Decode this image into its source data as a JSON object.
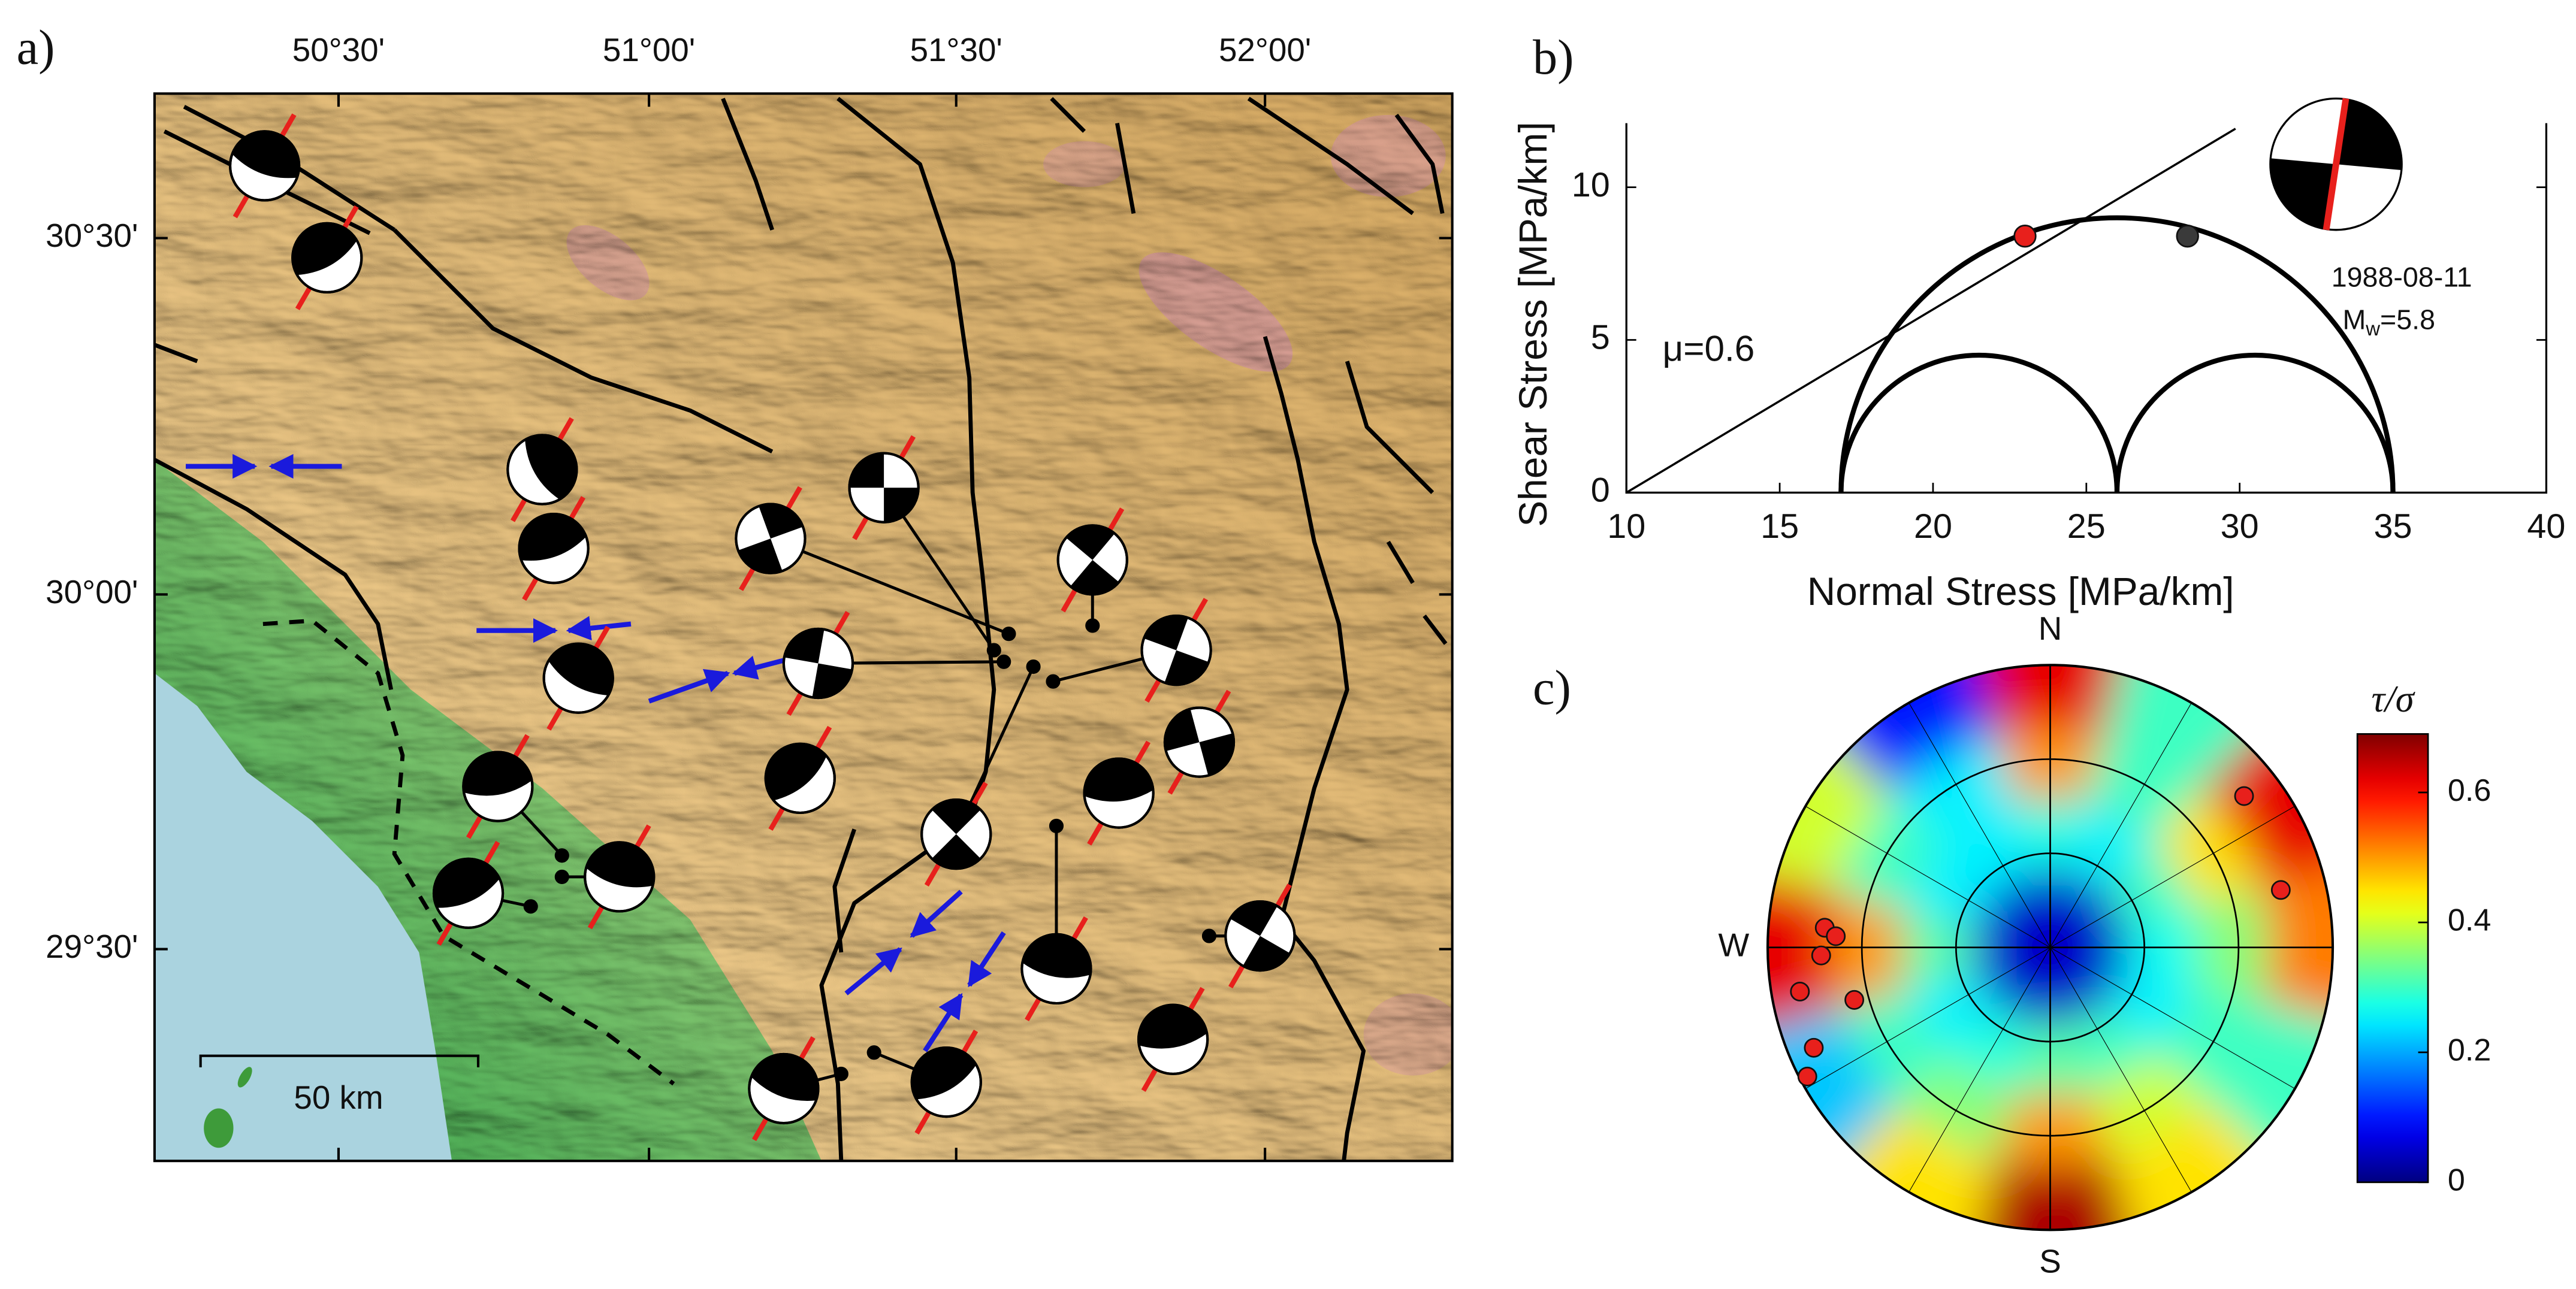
{
  "panel_labels": [
    "a)",
    "b)",
    "c)"
  ],
  "map": {
    "lon_ticks": [
      "50°30'",
      "51°00'",
      "51°30'",
      "52°00'"
    ],
    "lat_ticks": [
      "30°30'",
      "30°00'",
      "29°30'"
    ],
    "scale_label": "50 km"
  },
  "chart_data": [
    {
      "type": "mohr",
      "xlabel": "Normal Stress [MPa/km]",
      "ylabel": "Shear Stress  [MPa/km]",
      "xlim": [
        10,
        40
      ],
      "xticks": [
        10,
        15,
        20,
        25,
        30,
        35,
        40
      ],
      "ylim": [
        0,
        12.1
      ],
      "yticks": [
        0,
        5,
        10
      ],
      "principal_stresses": [
        17,
        26,
        35
      ],
      "friction_coefficient": 0.6,
      "annotation": "μ=0.6",
      "points": {
        "x": [
          23,
          28.3
        ],
        "y": [
          8.4,
          8.4
        ],
        "colors": [
          "#e8201c",
          "#3a3a3a"
        ]
      },
      "event_date": "1988-08-11",
      "magnitude": {
        "symbol": "M",
        "subscript": "w",
        "text": "=5.8"
      }
    },
    {
      "type": "stereonet",
      "colorbar_label": "τ/σ",
      "colormap": "jet",
      "clim": [
        0,
        0.69
      ],
      "cticks": [
        0,
        0.2,
        0.4,
        0.6
      ],
      "direction_labels": [
        {
          "label": "N",
          "azimuth": 0
        },
        {
          "label": "W",
          "azimuth": 270
        },
        {
          "label": "S",
          "azimuth": 180
        }
      ],
      "field": {
        "azimuths": [
          0,
          30,
          60,
          90,
          120,
          150,
          180,
          210,
          240,
          270,
          300,
          330
        ],
        "radii": [
          0.15,
          0.4,
          0.65,
          0.9
        ],
        "values": [
          [
            0.05,
            0.05,
            0.05,
            0.05,
            0.05,
            0.05,
            0.05,
            0.05,
            0.05,
            0.05,
            0.05,
            0.05
          ],
          [
            0.28,
            0.25,
            0.3,
            0.27,
            0.25,
            0.3,
            0.32,
            0.28,
            0.25,
            0.32,
            0.25,
            0.25
          ],
          [
            0.5,
            0.3,
            0.45,
            0.35,
            0.3,
            0.4,
            0.5,
            0.35,
            0.3,
            0.5,
            0.3,
            0.25
          ],
          [
            0.62,
            0.3,
            0.62,
            0.52,
            0.3,
            0.45,
            0.66,
            0.45,
            0.22,
            0.62,
            0.4,
            0.1
          ]
        ]
      },
      "points": {
        "azimuth": [
          52,
          76,
          275,
          273,
          268,
          260,
          255,
          247,
          242
        ],
        "plunge": [
          14,
          17,
          21,
          25,
          20,
          11,
          29,
          10,
          3
        ],
        "color": "#e8201c"
      }
    }
  ]
}
